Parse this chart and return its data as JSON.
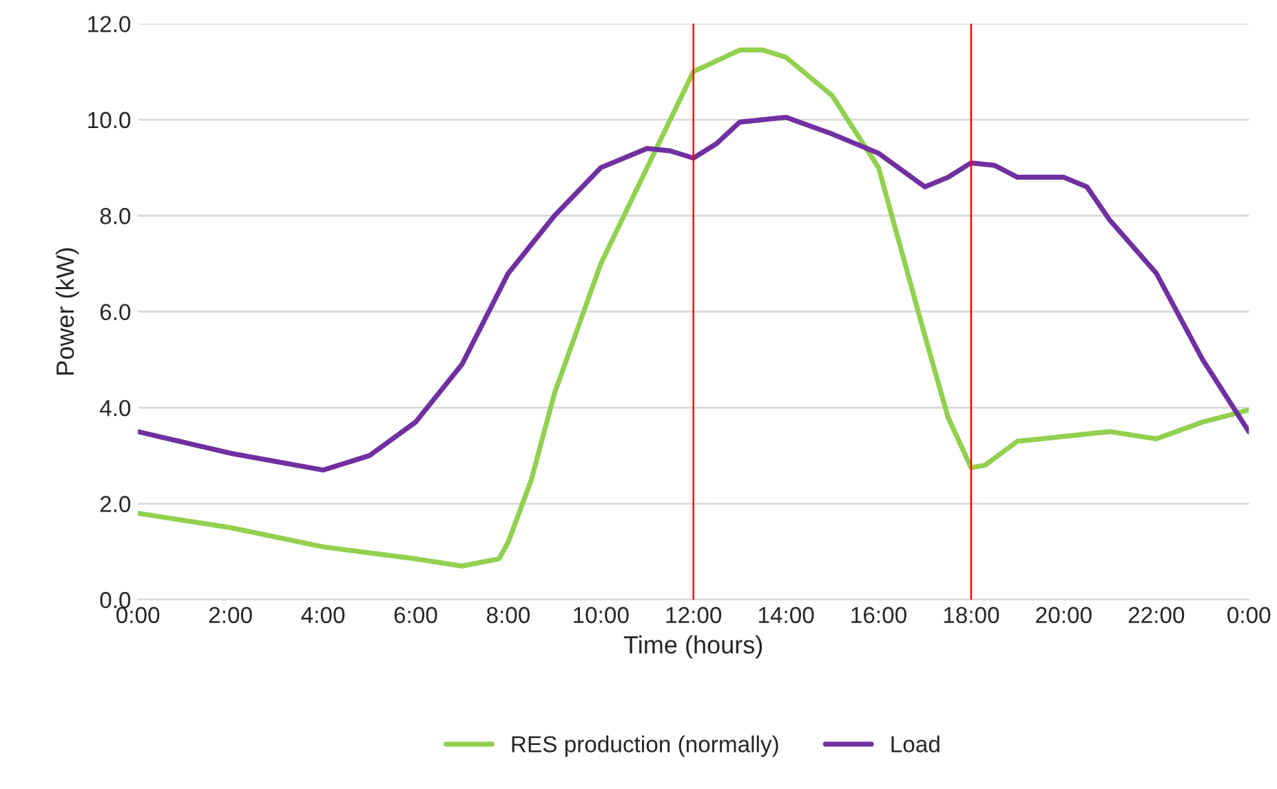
{
  "chart_data": {
    "type": "line",
    "xlabel": "Time (hours)",
    "ylabel": "Power (kW)",
    "series": [
      {
        "name": "RES production (normally)",
        "color": "#92d050",
        "x": [
          0,
          2,
          4,
          6,
          7,
          7.8,
          8,
          8.5,
          9,
          10,
          11,
          12,
          13,
          13.5,
          14,
          15,
          16,
          17,
          17.5,
          18,
          18.3,
          19,
          20,
          21,
          22,
          23,
          24
        ],
        "values": [
          1.8,
          1.5,
          1.1,
          0.85,
          0.7,
          0.85,
          1.2,
          2.5,
          4.3,
          7.0,
          9.0,
          11.0,
          11.45,
          11.45,
          11.3,
          10.5,
          9.0,
          5.5,
          3.8,
          2.75,
          2.8,
          3.3,
          3.4,
          3.5,
          3.35,
          3.7,
          3.95
        ]
      },
      {
        "name": "Load",
        "color": "#7030a0",
        "x": [
          0,
          2,
          4,
          5,
          6,
          7,
          8,
          9,
          10,
          11,
          11.5,
          12,
          12.5,
          13,
          14,
          15,
          16,
          17,
          17.5,
          18,
          18.5,
          19,
          20,
          20.5,
          21,
          22,
          23,
          24
        ],
        "values": [
          3.5,
          3.05,
          2.7,
          3.0,
          3.7,
          4.9,
          6.8,
          8.0,
          9.0,
          9.4,
          9.35,
          9.2,
          9.5,
          9.95,
          10.05,
          9.7,
          9.3,
          8.6,
          8.8,
          9.1,
          9.05,
          8.8,
          8.8,
          8.6,
          7.9,
          6.8,
          5.0,
          3.5
        ]
      }
    ],
    "xlim": [
      0,
      24
    ],
    "xticks": [
      {
        "value": 0,
        "label": "0:00"
      },
      {
        "value": 2,
        "label": "2:00"
      },
      {
        "value": 4,
        "label": "4:00"
      },
      {
        "value": 6,
        "label": "6:00"
      },
      {
        "value": 8,
        "label": "8:00"
      },
      {
        "value": 10,
        "label": "10:00"
      },
      {
        "value": 12,
        "label": "12:00"
      },
      {
        "value": 14,
        "label": "14:00"
      },
      {
        "value": 16,
        "label": "16:00"
      },
      {
        "value": 18,
        "label": "18:00"
      },
      {
        "value": 20,
        "label": "20:00"
      },
      {
        "value": 22,
        "label": "22:00"
      },
      {
        "value": 24,
        "label": "0:00"
      }
    ],
    "ylim": [
      0,
      12
    ],
    "yticks": [
      {
        "value": 0,
        "label": "0.0"
      },
      {
        "value": 2,
        "label": "2.0"
      },
      {
        "value": 4,
        "label": "4.0"
      },
      {
        "value": 6,
        "label": "6.0"
      },
      {
        "value": 8,
        "label": "8.0"
      },
      {
        "value": 10,
        "label": "10.0"
      },
      {
        "value": 12,
        "label": "12.0"
      }
    ],
    "ref_lines": [
      {
        "axis": "x",
        "value": 12,
        "color": "#ff0000"
      },
      {
        "axis": "x",
        "value": 18,
        "color": "#ff0000"
      }
    ],
    "grid": "y",
    "legend": "bottom",
    "marker": "none",
    "line_style": "solid"
  }
}
